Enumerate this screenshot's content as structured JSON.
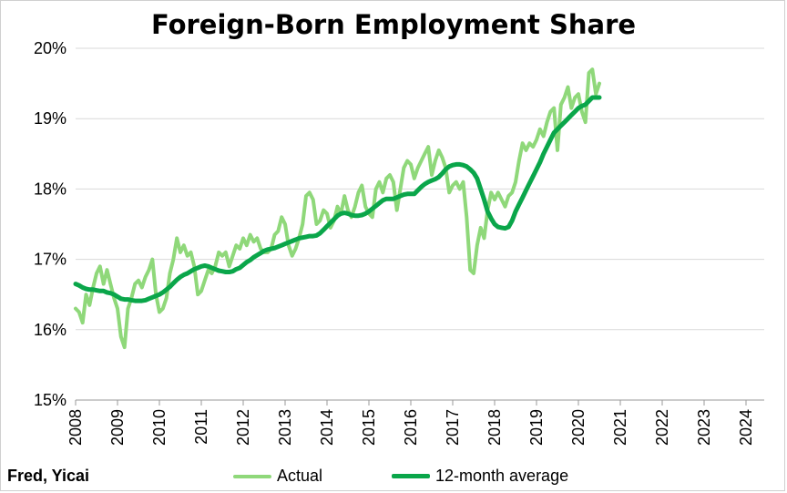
{
  "chart_data": {
    "type": "line",
    "title": "Foreign-Born Employment Share",
    "source": "Fred, Yicai",
    "xlabel": "",
    "ylabel": "",
    "ylim": [
      15,
      20
    ],
    "y_ticks": [
      "15%",
      "16%",
      "17%",
      "18%",
      "19%",
      "20%"
    ],
    "x_ticks": [
      "2008",
      "2009",
      "2010",
      "2011",
      "2012",
      "2013",
      "2014",
      "2015",
      "2016",
      "2017",
      "2018",
      "2019",
      "2020",
      "2021",
      "2022",
      "2023",
      "2024"
    ],
    "legend_position": "bottom",
    "x_start": "2008-01",
    "series": [
      {
        "name": "Actual",
        "color": "#8fd87a",
        "values": [
          16.3,
          16.25,
          16.1,
          16.5,
          16.35,
          16.6,
          16.8,
          16.9,
          16.65,
          16.85,
          16.65,
          16.45,
          16.3,
          15.9,
          15.75,
          16.3,
          16.45,
          16.65,
          16.7,
          16.6,
          16.75,
          16.85,
          17.0,
          16.5,
          16.25,
          16.3,
          16.45,
          16.8,
          17.0,
          17.3,
          17.1,
          17.2,
          17.05,
          17.1,
          16.9,
          16.5,
          16.55,
          16.7,
          16.85,
          16.8,
          16.9,
          17.1,
          17.05,
          17.1,
          16.9,
          17.05,
          17.2,
          17.15,
          17.3,
          17.2,
          17.35,
          17.25,
          17.3,
          17.15,
          17.1,
          17.1,
          17.15,
          17.35,
          17.4,
          17.6,
          17.5,
          17.2,
          17.05,
          17.15,
          17.3,
          17.5,
          17.9,
          17.95,
          17.85,
          17.5,
          17.55,
          17.7,
          17.65,
          17.45,
          17.55,
          17.75,
          17.65,
          17.9,
          17.7,
          17.6,
          17.75,
          17.95,
          18.05,
          17.75,
          17.65,
          17.6,
          18.0,
          18.1,
          17.95,
          18.15,
          18.2,
          18.1,
          17.7,
          18.0,
          18.3,
          18.4,
          18.35,
          18.15,
          18.3,
          18.4,
          18.5,
          18.6,
          18.2,
          18.4,
          18.55,
          18.45,
          18.3,
          17.95,
          18.05,
          18.1,
          18.0,
          18.1,
          17.6,
          16.85,
          16.8,
          17.2,
          17.45,
          17.3,
          17.7,
          17.95,
          17.85,
          17.95,
          17.85,
          17.75,
          17.9,
          17.95,
          18.1,
          18.4,
          18.65,
          18.55,
          18.65,
          18.6,
          18.7,
          18.85,
          18.75,
          18.95,
          19.1,
          19.15,
          18.55,
          19.2,
          19.3,
          19.45,
          19.15,
          19.3,
          19.35,
          19.1,
          18.95,
          19.65,
          19.7,
          19.35,
          19.5
        ]
      },
      {
        "name": "12-month average",
        "color": "#0aa64a",
        "values": [
          16.65,
          16.63,
          16.6,
          16.58,
          16.57,
          16.57,
          16.56,
          16.55,
          16.55,
          16.53,
          16.52,
          16.5,
          16.47,
          16.44,
          16.43,
          16.43,
          16.42,
          16.41,
          16.41,
          16.41,
          16.42,
          16.44,
          16.46,
          16.48,
          16.5,
          16.53,
          16.57,
          16.61,
          16.66,
          16.71,
          16.75,
          16.78,
          16.8,
          16.83,
          16.86,
          16.88,
          16.9,
          16.91,
          16.9,
          16.88,
          16.86,
          16.84,
          16.83,
          16.82,
          16.82,
          16.83,
          16.86,
          16.88,
          16.92,
          16.96,
          16.99,
          17.03,
          17.06,
          17.09,
          17.12,
          17.14,
          17.15,
          17.16,
          17.18,
          17.2,
          17.22,
          17.24,
          17.26,
          17.28,
          17.3,
          17.31,
          17.32,
          17.33,
          17.33,
          17.34,
          17.37,
          17.42,
          17.47,
          17.52,
          17.57,
          17.62,
          17.65,
          17.66,
          17.65,
          17.63,
          17.62,
          17.62,
          17.63,
          17.65,
          17.68,
          17.72,
          17.76,
          17.8,
          17.84,
          17.86,
          17.86,
          17.86,
          17.88,
          17.9,
          17.92,
          17.93,
          17.93,
          17.93,
          17.98,
          18.03,
          18.07,
          18.1,
          18.12,
          18.14,
          18.17,
          18.22,
          18.28,
          18.32,
          18.34,
          18.35,
          18.35,
          18.34,
          18.32,
          18.28,
          18.23,
          18.15,
          18.0,
          17.85,
          17.68,
          17.58,
          17.5,
          17.46,
          17.45,
          17.44,
          17.46,
          17.55,
          17.68,
          17.78,
          17.88,
          17.98,
          18.08,
          18.18,
          18.28,
          18.38,
          18.5,
          18.6,
          18.7,
          18.8,
          18.85,
          18.9,
          18.95,
          19.0,
          19.05,
          19.1,
          19.15,
          19.18,
          19.2,
          19.25,
          19.3,
          19.3,
          19.3
        ]
      }
    ]
  }
}
